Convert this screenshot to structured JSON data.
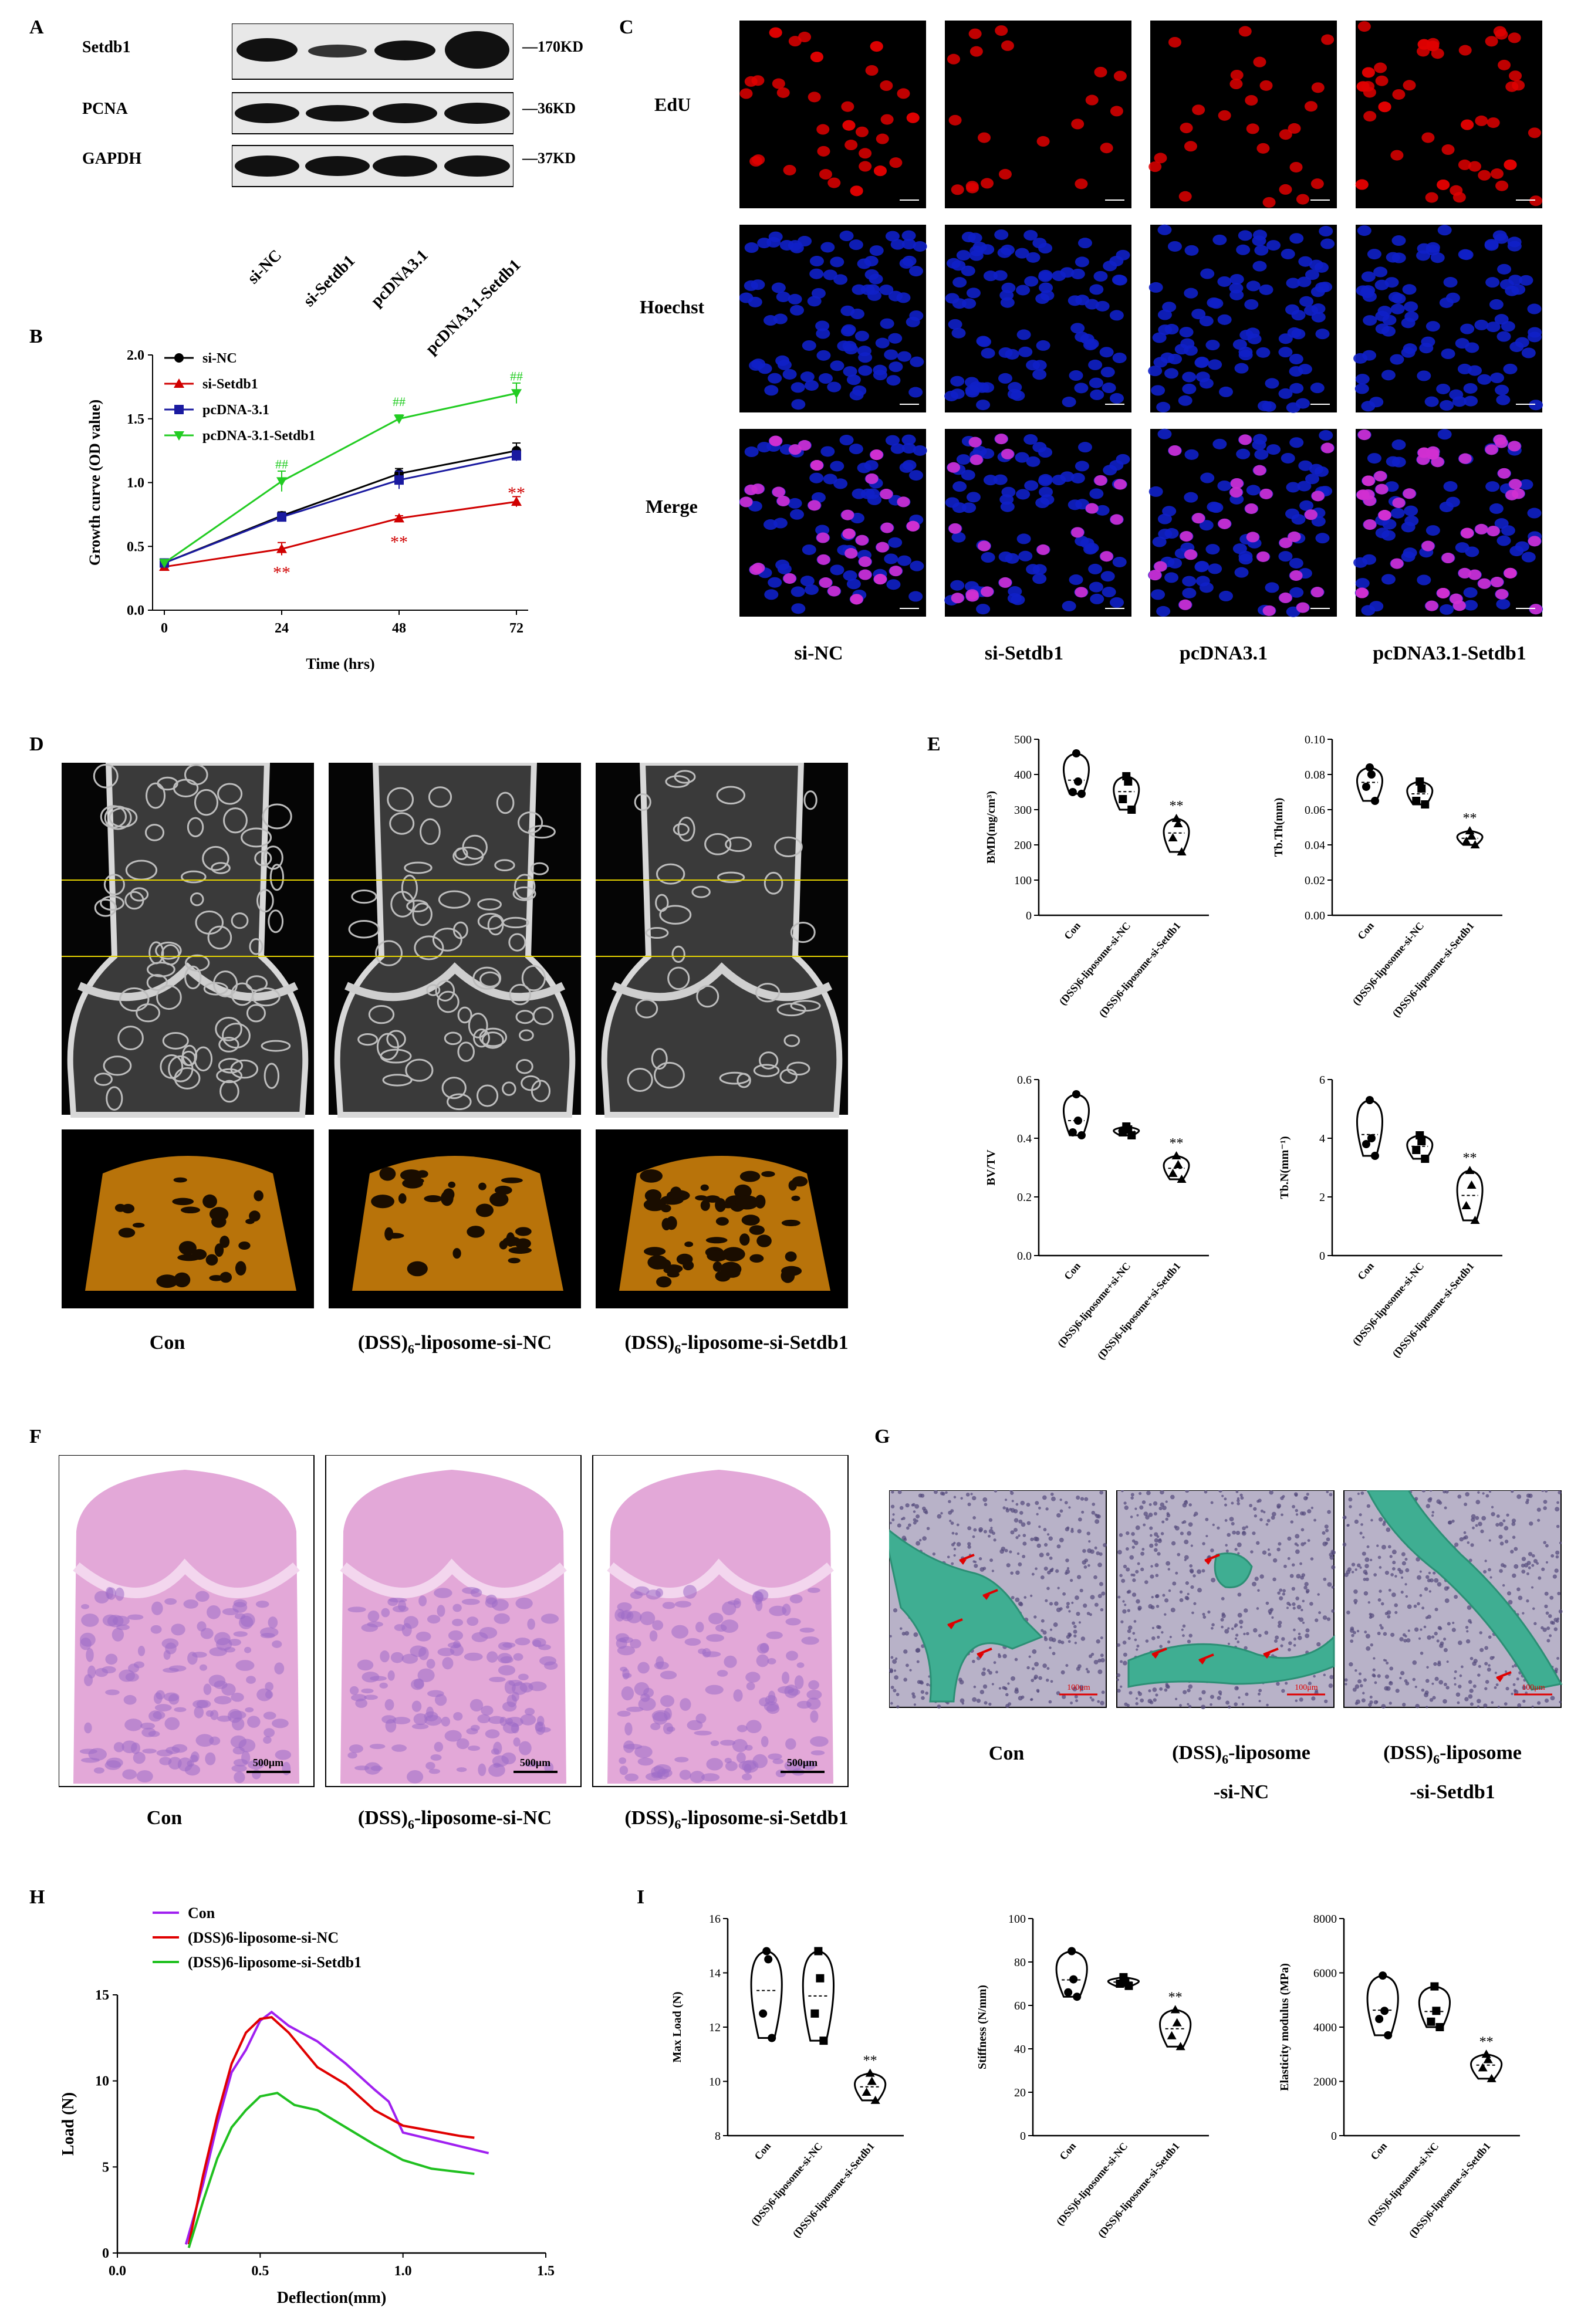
{
  "panels": {
    "A": "A",
    "B": "B",
    "C": "C",
    "D": "D",
    "E": "E",
    "F": "F",
    "G": "G",
    "H": "H",
    "I": "I"
  },
  "westernBlot": {
    "rows": [
      {
        "label": "Setdb1",
        "size": "—170KD"
      },
      {
        "label": "PCNA",
        "size": "—36KD"
      },
      {
        "label": "GAPDH",
        "size": "—37KD"
      }
    ],
    "lanes": [
      "si-NC",
      "si-Setdb1",
      "pcDNA3.1",
      "pcDNA3.1-Setdb1"
    ]
  },
  "edu": {
    "rows": [
      "EdU",
      "Hoechst",
      "Merge"
    ],
    "cols": [
      "si-NC",
      "si-Setdb1",
      "pcDNA3.1",
      "pcDNA3.1-Setdb1"
    ],
    "colors": {
      "edu": "#e00000",
      "hoechst": "#1020c8",
      "merge": "#d030d0"
    }
  },
  "groups3": [
    "Con",
    "(DSS)6-liposome-si-NC",
    "(DSS)6-liposome-si-Setdb1"
  ],
  "microct": {
    "captions": [
      "Con",
      "(DSS)",
      "-liposome-si-NC",
      "(DSS)",
      "-liposome-si-Setdb1",
      "6"
    ]
  },
  "he": {
    "scale": "500μm",
    "captions": [
      "Con",
      "(DSS)",
      "-liposome-si-NC",
      "(DSS)",
      "-liposome-si-Setdb1",
      "6"
    ]
  },
  "masson": {
    "scale": "100μm",
    "captions": [
      "Con",
      "(DSS)",
      "-liposome",
      "-si-NC",
      "(DSS)",
      "-liposome",
      "-si-Setdb1",
      "6"
    ]
  },
  "chart_data": [
    {
      "id": "B",
      "type": "line",
      "xlabel": "Time (hrs)",
      "ylabel": "Growth curve (OD value)",
      "x": [
        0,
        24,
        48,
        72
      ],
      "xlim": [
        0,
        72
      ],
      "ylim": [
        0,
        2.0
      ],
      "yticks": [
        "0.0",
        "0.5",
        "1.0",
        "1.5",
        "2.0"
      ],
      "series": [
        {
          "name": "si-NC",
          "color": "#000000",
          "marker": "circle",
          "values": [
            0.37,
            0.74,
            1.07,
            1.25
          ],
          "err": [
            0.02,
            0.03,
            0.04,
            0.06
          ]
        },
        {
          "name": "si-Setdb1",
          "color": "#d00000",
          "marker": "triangle",
          "values": [
            0.34,
            0.48,
            0.72,
            0.85
          ],
          "err": [
            0.02,
            0.05,
            0.02,
            0.04
          ]
        },
        {
          "name": "pcDNA-3.1",
          "color": "#1a1aa0",
          "marker": "square",
          "values": [
            0.37,
            0.73,
            1.02,
            1.21
          ],
          "err": [
            0.02,
            0.02,
            0.07,
            0.04
          ]
        },
        {
          "name": "pcDNA-3.1-Setdb1",
          "color": "#22cc22",
          "marker": "triangle-down",
          "values": [
            0.37,
            1.01,
            1.5,
            1.7
          ],
          "err": [
            0.02,
            0.08,
            0.03,
            0.08
          ]
        }
      ],
      "annotations": {
        "red": "**",
        "green": "##"
      }
    },
    {
      "id": "E1",
      "type": "violin",
      "ylabel": "BMD(mg/cm³)",
      "ylim": [
        0,
        500
      ],
      "yticks": [
        "0",
        "100",
        "200",
        "300",
        "400",
        "500"
      ],
      "categories": [
        "Con",
        "(DSS)6-liposome-si-NC",
        "(DSS)6-liposome-si-Setdb1"
      ],
      "values": [
        [
          460,
          380,
          350,
          345
        ],
        [
          395,
          380,
          330,
          300
        ],
        [
          275,
          260,
          220,
          180
        ]
      ],
      "sig": "**"
    },
    {
      "id": "E2",
      "type": "violin",
      "ylabel": "Tb.Th(mm)",
      "ylim": [
        0,
        0.1
      ],
      "yticks": [
        "0.00",
        "0.02",
        "0.04",
        "0.06",
        "0.08",
        "0.10"
      ],
      "categories": [
        "Con",
        "(DSS)6-liposome-si-NC",
        "(DSS)6-liposome-si-Setdb1"
      ],
      "values": [
        [
          0.084,
          0.08,
          0.073,
          0.065
        ],
        [
          0.076,
          0.072,
          0.065,
          0.063
        ],
        [
          0.048,
          0.045,
          0.042,
          0.04
        ]
      ],
      "sig": "**"
    },
    {
      "id": "E3",
      "type": "violin",
      "ylabel": "BV/TV",
      "ylim": [
        0,
        0.6
      ],
      "yticks": [
        "0.0",
        "0.2",
        "0.4",
        "0.6"
      ],
      "categories": [
        "Con",
        "(DSS)6-liposome+si-NC",
        "(DSS)6-liposome+si-Setdb1"
      ],
      "values": [
        [
          0.55,
          0.46,
          0.42,
          0.41
        ],
        [
          0.44,
          0.43,
          0.42,
          0.41
        ],
        [
          0.34,
          0.31,
          0.28,
          0.26
        ]
      ],
      "sig": "**"
    },
    {
      "id": "E4",
      "type": "violin",
      "ylabel": "Tb.N(mm⁻¹)",
      "ylim": [
        0,
        6
      ],
      "yticks": [
        "0",
        "2",
        "4",
        "6"
      ],
      "categories": [
        "Con",
        "(DSS)6-liposome-si-NC",
        "(DSS)6-liposome-si-Setdb1"
      ],
      "values": [
        [
          5.3,
          4.0,
          3.8,
          3.4
        ],
        [
          4.1,
          3.9,
          3.6,
          3.3
        ],
        [
          2.9,
          2.4,
          1.7,
          1.2
        ]
      ],
      "sig": "**"
    },
    {
      "id": "H",
      "type": "line",
      "xlabel": "Deflection(mm)",
      "ylabel": "Load (N)",
      "xlim": [
        0,
        1.5
      ],
      "ylim": [
        0,
        15
      ],
      "xticks": [
        "0.0",
        "0.5",
        "1.0",
        "1.5"
      ],
      "yticks": [
        "0",
        "5",
        "10",
        "15"
      ],
      "series": [
        {
          "name": "Con",
          "color": "#a020f0",
          "points": [
            [
              0.24,
              0.5
            ],
            [
              0.3,
              4
            ],
            [
              0.35,
              7.5
            ],
            [
              0.4,
              10.5
            ],
            [
              0.45,
              11.8
            ],
            [
              0.5,
              13.5
            ],
            [
              0.54,
              14.0
            ],
            [
              0.6,
              13.2
            ],
            [
              0.7,
              12.3
            ],
            [
              0.8,
              11.0
            ],
            [
              0.9,
              9.5
            ],
            [
              0.95,
              8.8
            ],
            [
              1.0,
              7.0
            ],
            [
              1.1,
              6.6
            ],
            [
              1.2,
              6.2
            ],
            [
              1.3,
              5.8
            ]
          ]
        },
        {
          "name": "(DSS)6-liposome-si-NC",
          "color": "#e00000",
          "points": [
            [
              0.25,
              0.5
            ],
            [
              0.3,
              4.5
            ],
            [
              0.35,
              8
            ],
            [
              0.4,
              11
            ],
            [
              0.45,
              12.8
            ],
            [
              0.5,
              13.6
            ],
            [
              0.54,
              13.7
            ],
            [
              0.6,
              12.8
            ],
            [
              0.7,
              10.8
            ],
            [
              0.8,
              9.8
            ],
            [
              0.9,
              8.3
            ],
            [
              1.0,
              7.4
            ],
            [
              1.1,
              7.1
            ],
            [
              1.2,
              6.8
            ],
            [
              1.25,
              6.7
            ]
          ]
        },
        {
          "name": "(DSS)6-liposome-si-Setdb1",
          "color": "#20c020",
          "points": [
            [
              0.25,
              0.3
            ],
            [
              0.3,
              3.0
            ],
            [
              0.35,
              5.5
            ],
            [
              0.4,
              7.3
            ],
            [
              0.45,
              8.3
            ],
            [
              0.5,
              9.1
            ],
            [
              0.56,
              9.3
            ],
            [
              0.62,
              8.6
            ],
            [
              0.7,
              8.3
            ],
            [
              0.8,
              7.3
            ],
            [
              0.9,
              6.3
            ],
            [
              1.0,
              5.4
            ],
            [
              1.1,
              4.9
            ],
            [
              1.2,
              4.7
            ],
            [
              1.25,
              4.6
            ]
          ]
        }
      ]
    },
    {
      "id": "I1",
      "type": "violin",
      "ylabel": "Max Load (N)",
      "ylim": [
        8,
        16
      ],
      "yticks": [
        "8",
        "10",
        "12",
        "14",
        "16"
      ],
      "categories": [
        "Con",
        "(DSS)6-liposome-si-NC",
        "(DSS)6-liposome-si-Setdb1"
      ],
      "values": [
        [
          14.8,
          14.5,
          12.5,
          11.6
        ],
        [
          14.8,
          13.8,
          12.5,
          11.5
        ],
        [
          10.3,
          10.0,
          9.6,
          9.3
        ]
      ],
      "sig": "**"
    },
    {
      "id": "I2",
      "type": "violin",
      "ylabel": "Stiffness (N/mm)",
      "ylim": [
        0,
        100
      ],
      "yticks": [
        "0",
        "20",
        "40",
        "60",
        "80",
        "100"
      ],
      "categories": [
        "Con",
        "(DSS)6-liposome-si-NC",
        "(DSS)6-liposome-si-Setdb1"
      ],
      "values": [
        [
          85,
          72,
          66,
          64
        ],
        [
          73,
          71,
          70,
          69
        ],
        [
          58,
          52,
          46,
          41
        ]
      ],
      "sig": "**"
    },
    {
      "id": "I3",
      "type": "violin",
      "ylabel": "Elasticity modulus (MPa)",
      "ylim": [
        0,
        8000
      ],
      "yticks": [
        "0",
        "2000",
        "4000",
        "6000",
        "8000"
      ],
      "categories": [
        "Con",
        "(DSS)6-liposome-si-NC",
        "(DSS)6-liposome-si-Setdb1"
      ],
      "values": [
        [
          5900,
          4600,
          4300,
          3700
        ],
        [
          5500,
          4600,
          4200,
          4000
        ],
        [
          3000,
          2800,
          2500,
          2100
        ]
      ],
      "sig": "**"
    }
  ]
}
